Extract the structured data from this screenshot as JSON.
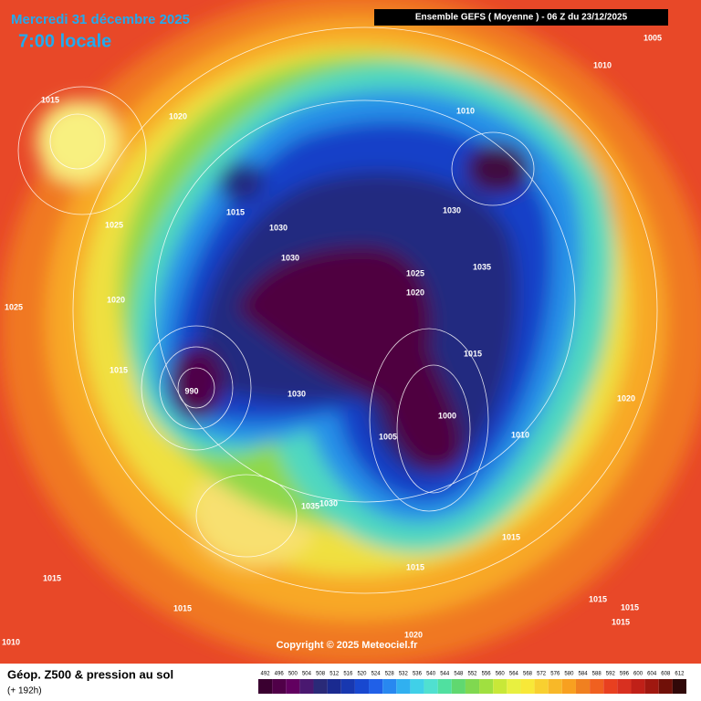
{
  "header": {
    "date": "Mercredi 31 décembre 2025",
    "time": "7:00 locale",
    "run": "Ensemble GEFS  ( Moyenne )  -  06 Z du 23/12/2025"
  },
  "map": {
    "isobar_labels": [
      1005,
      1010,
      1015,
      1020,
      1010,
      1025,
      1015,
      1030,
      1030,
      1030,
      1035,
      1025,
      1020,
      1020,
      1025,
      1015,
      1015,
      1030,
      1000,
      1005,
      1010,
      1020,
      990,
      1015,
      1015,
      1015,
      1015,
      1015,
      1015,
      1015,
      1020,
      1010,
      1035,
      1030
    ]
  },
  "copyright": "Copyright © 2025 Meteociel.fr",
  "footer": {
    "title": "Géop. Z500 & pression au sol",
    "lead": "(+ 192h)"
  },
  "scale": {
    "values": [
      492,
      496,
      500,
      504,
      508,
      512,
      516,
      520,
      524,
      528,
      532,
      536,
      540,
      544,
      548,
      552,
      556,
      560,
      564,
      568,
      572,
      576,
      580,
      584,
      588,
      592,
      596,
      600,
      604,
      608,
      612
    ],
    "colors": [
      "#3a0030",
      "#500048",
      "#620060",
      "#4a1870",
      "#2a2a78",
      "#1a2a90",
      "#1838b0",
      "#1848d0",
      "#2060e8",
      "#2888f0",
      "#30b0f0",
      "#40d0e8",
      "#50e0d0",
      "#50e0a0",
      "#60d870",
      "#80d850",
      "#a0e040",
      "#c8e838",
      "#e8f040",
      "#f8e838",
      "#f8d030",
      "#f8b828",
      "#f8a020",
      "#f08020",
      "#f06020",
      "#e84020",
      "#d83020",
      "#c02018",
      "#a01810",
      "#701008",
      "#300808"
    ]
  }
}
